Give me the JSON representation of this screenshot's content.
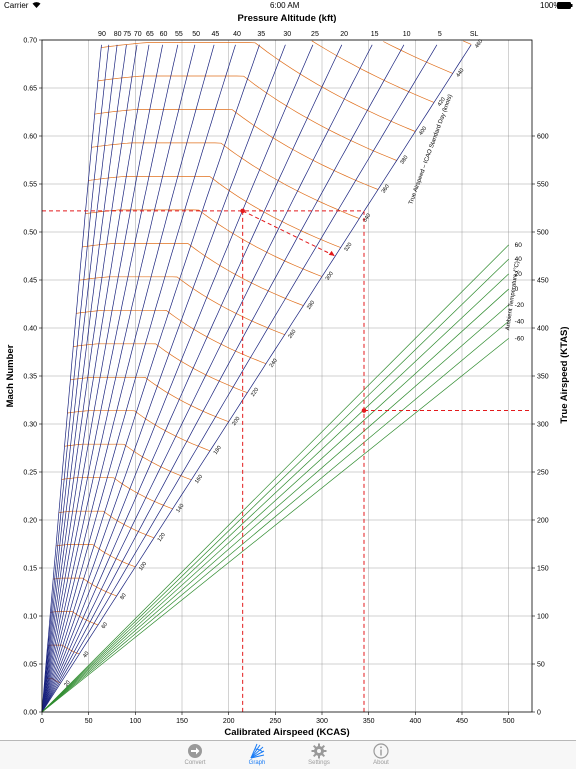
{
  "status_bar": {
    "carrier": "Carrier",
    "time": "6:00 AM",
    "battery": "100%"
  },
  "tabs": [
    {
      "label": "Convert",
      "icon": "arrow-right-icon",
      "active": false
    },
    {
      "label": "Graph",
      "icon": "graph-icon",
      "active": true
    },
    {
      "label": "Settings",
      "icon": "gear-icon",
      "active": false
    },
    {
      "label": "About",
      "icon": "info-icon",
      "active": false
    }
  ],
  "colors": {
    "altitude_lines": "#1a237e",
    "tas_contours": "#e0701e",
    "temperature_lines": "#2e8b2e",
    "example_path": "#e31a1c",
    "grid": "#8c8c8c",
    "tab_active": "#1a7cf5",
    "tab_inactive": "#9a9a9a"
  },
  "chart_data": {
    "type": "line",
    "title": "Pressure Altitude (kft)",
    "xlabel": "Calibrated Airspeed (KCAS)",
    "ylabel": "Mach Number",
    "y2label": "True Airspeed (KTAS)",
    "xlim": [
      0,
      525
    ],
    "ylim": [
      0,
      0.7
    ],
    "y2lim": [
      0,
      700
    ],
    "x_ticks": [
      "0",
      "50",
      "100",
      "150",
      "200",
      "250",
      "300",
      "350",
      "400",
      "450",
      "500"
    ],
    "y_ticks": [
      "0.00",
      "0.05",
      "0.10",
      "0.15",
      "0.20",
      "0.25",
      "0.30",
      "0.35",
      "0.40",
      "0.45",
      "0.50",
      "0.55",
      "0.60",
      "0.65",
      "0.70"
    ],
    "y2_ticks": [
      "0",
      "50",
      "100",
      "150",
      "200",
      "250",
      "300",
      "350",
      "400",
      "450",
      "500",
      "550",
      "600"
    ],
    "grid": true,
    "altitude_lines": {
      "kft": [
        90,
        85,
        80,
        75,
        70,
        65,
        60,
        55,
        50,
        45,
        40,
        35,
        30,
        25,
        20,
        15,
        10,
        5,
        0
      ],
      "top_labels": [
        {
          "kft": 90,
          "text": "90"
        },
        {
          "kft": 80,
          "text": "80"
        },
        {
          "kft": 75,
          "text": "75"
        },
        {
          "kft": 70,
          "text": "70"
        },
        {
          "kft": 65,
          "text": "65"
        },
        {
          "kft": 60,
          "text": "60"
        },
        {
          "kft": 55,
          "text": "55"
        },
        {
          "kft": 50,
          "text": "50"
        },
        {
          "kft": 45,
          "text": "45"
        },
        {
          "kft": 40,
          "text": "40"
        },
        {
          "kft": 35,
          "text": "35"
        },
        {
          "kft": 30,
          "text": "30"
        },
        {
          "kft": 25,
          "text": "25"
        },
        {
          "kft": 20,
          "text": "20"
        },
        {
          "kft": 15,
          "text": "15"
        },
        {
          "kft": 10,
          "text": "10"
        },
        {
          "kft": 5,
          "text": "5"
        },
        {
          "kft": 0,
          "text": "SL"
        }
      ]
    },
    "tas_contours": {
      "label": "True Airspeed – ICAO Standard Day (knots)",
      "values": [
        20,
        40,
        60,
        80,
        100,
        120,
        140,
        160,
        180,
        200,
        220,
        240,
        260,
        280,
        300,
        320,
        340,
        360,
        380,
        400,
        420,
        440,
        460
      ],
      "labels": [
        "20",
        "40",
        "60",
        "80",
        "100",
        "120",
        "140",
        "160",
        "180",
        "200",
        "220",
        "240",
        "260",
        "280",
        "300",
        "320",
        "340",
        "360",
        "380",
        "400",
        "420",
        "440",
        "460"
      ]
    },
    "temperature_lines": {
      "label": "Ambient Temperature (°C)",
      "values_c": [
        60,
        40,
        20,
        0,
        -20,
        -40,
        -60
      ],
      "labels": [
        "60",
        "40",
        "20",
        "0",
        "-20",
        "-40",
        "-60"
      ]
    },
    "example_path": {
      "kcas": 345,
      "mach": 0.522,
      "kft": 25,
      "ktas": 314,
      "tas_point_kcas": 215
    }
  }
}
